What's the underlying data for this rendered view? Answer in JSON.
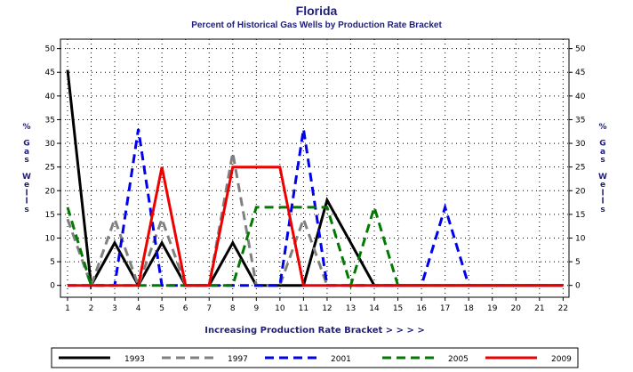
{
  "chart_data": {
    "type": "line",
    "title": "Florida",
    "subtitle": "Percent of Historical Gas Wells by Production Rate Bracket",
    "xlabel": "Increasing Production Rate Bracket > > > >",
    "ylabel": "% Gas Wells",
    "ylabel_chars": [
      "%",
      "",
      "G",
      "a",
      "s",
      "",
      "W",
      "e",
      "l",
      "l",
      "s"
    ],
    "x": [
      1,
      2,
      3,
      4,
      5,
      6,
      7,
      8,
      9,
      10,
      11,
      12,
      13,
      14,
      15,
      16,
      17,
      18,
      19,
      20,
      21,
      22
    ],
    "ylim": [
      0,
      50
    ],
    "yticks": [
      0,
      5,
      10,
      15,
      20,
      25,
      30,
      35,
      40,
      45,
      50
    ],
    "grid": true,
    "legend_position": "bottom",
    "series": [
      {
        "name": "1993",
        "color": "#000000",
        "dash": "solid",
        "values": [
          45.5,
          0,
          9,
          0,
          9,
          0,
          0,
          9,
          0,
          0,
          0,
          18,
          9,
          0,
          0,
          0,
          0,
          0,
          0,
          0,
          0,
          0
        ]
      },
      {
        "name": "1997",
        "color": "#808080",
        "dash": "dashed",
        "values": [
          14,
          0,
          14,
          0,
          14,
          0,
          0,
          28,
          0,
          0,
          14,
          0,
          0,
          0,
          0,
          0,
          0,
          0,
          0,
          0,
          0,
          0
        ]
      },
      {
        "name": "2001",
        "color": "#0000ee",
        "dash": "dashed",
        "values": [
          0,
          0,
          0,
          33,
          0,
          0,
          0,
          0,
          0,
          0,
          33,
          0,
          0,
          0,
          0,
          0,
          16.5,
          0,
          0,
          0,
          0,
          0
        ]
      },
      {
        "name": "2005",
        "color": "#007a00",
        "dash": "dashed",
        "values": [
          16.5,
          0,
          0,
          0,
          0,
          0,
          0,
          0,
          16.5,
          16.5,
          16.5,
          16.5,
          0,
          16.5,
          0,
          0,
          0,
          0,
          0,
          0,
          0,
          0
        ]
      },
      {
        "name": "2009",
        "color": "#ee0000",
        "dash": "solid",
        "values": [
          0,
          0,
          0,
          0,
          25,
          0,
          0,
          25,
          25,
          25,
          0,
          0,
          0,
          0,
          0,
          0,
          0,
          0,
          0,
          0,
          0,
          0
        ]
      }
    ]
  }
}
